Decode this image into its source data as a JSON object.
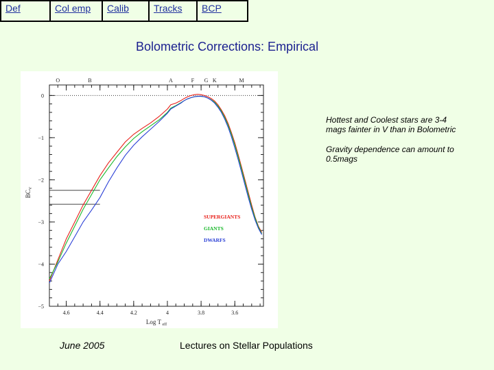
{
  "nav": {
    "items": [
      {
        "label": "Def",
        "width": 72
      },
      {
        "label": "Col emp",
        "width": 76
      },
      {
        "label": "Calib",
        "width": 68
      },
      {
        "label": "Tracks",
        "width": 70
      },
      {
        "label": "BCP",
        "width": 72
      }
    ]
  },
  "slide": {
    "title": "Bolometric Corrections: Empirical",
    "notes": [
      "Hottest and Coolest stars are 3-4 mags fainter in V than in Bolometric",
      "Gravity dependence can amount to 0.5mags"
    ],
    "footer_date": "June 2005",
    "footer_title": "Lectures on Stellar Populations"
  },
  "chart_data": {
    "type": "line",
    "xlabel": "Log T",
    "xlabel_sub": "eff",
    "ylabel": "BC",
    "ylabel_sub": "V",
    "xlim": [
      4.7,
      3.43
    ],
    "ylim": [
      -5.0,
      0.25
    ],
    "x_reversed": true,
    "grid": false,
    "zero_line": true,
    "x_ticks": [
      4.6,
      4.4,
      4.2,
      4.0,
      3.8,
      3.6
    ],
    "x_tick_labels": [
      "4.6",
      "4.4",
      "4.2",
      "4",
      "3.8",
      "3.6"
    ],
    "y_ticks": [
      0,
      -1,
      -2,
      -3,
      -4,
      -5
    ],
    "y_tick_labels": [
      "0",
      "−1",
      "−2",
      "−3",
      "−4",
      "−5"
    ],
    "spectral_types": [
      {
        "label": "O",
        "x": 4.65
      },
      {
        "label": "B",
        "x": 4.46
      },
      {
        "label": "A",
        "x": 3.98
      },
      {
        "label": "F",
        "x": 3.85
      },
      {
        "label": "G",
        "x": 3.77
      },
      {
        "label": "K",
        "x": 3.72
      },
      {
        "label": "M",
        "x": 3.56
      }
    ],
    "legend_position": "lower-right",
    "reference_lines": [
      {
        "y": -2.25,
        "x_from": 4.7,
        "x_to": 4.4
      },
      {
        "y": -2.58,
        "x_from": 4.7,
        "x_to": 4.4
      }
    ],
    "series": [
      {
        "name": "SUPERGIANTS",
        "color": "#e8201a",
        "x": [
          4.7,
          4.65,
          4.6,
          4.55,
          4.5,
          4.45,
          4.4,
          4.35,
          4.3,
          4.25,
          4.2,
          4.15,
          4.1,
          4.05,
          4.0,
          3.98,
          3.95,
          3.92,
          3.9,
          3.88,
          3.86,
          3.84,
          3.82,
          3.8,
          3.78,
          3.76,
          3.74,
          3.72,
          3.7,
          3.68,
          3.66,
          3.64,
          3.62,
          3.6,
          3.58,
          3.56,
          3.54,
          3.52,
          3.5,
          3.48,
          3.46,
          3.44
        ],
        "y": [
          -4.4,
          -3.9,
          -3.4,
          -3.0,
          -2.6,
          -2.25,
          -1.9,
          -1.6,
          -1.35,
          -1.1,
          -0.92,
          -0.78,
          -0.65,
          -0.5,
          -0.32,
          -0.22,
          -0.18,
          -0.12,
          -0.07,
          -0.03,
          0.0,
          0.02,
          0.03,
          0.02,
          0.0,
          -0.03,
          -0.07,
          -0.13,
          -0.22,
          -0.34,
          -0.48,
          -0.66,
          -0.88,
          -1.12,
          -1.4,
          -1.7,
          -2.0,
          -2.3,
          -2.6,
          -2.88,
          -3.1,
          -3.25
        ]
      },
      {
        "name": "GIANTS",
        "color": "#18b82a",
        "x": [
          4.7,
          4.65,
          4.6,
          4.55,
          4.5,
          4.45,
          4.4,
          4.35,
          4.3,
          4.25,
          4.2,
          4.15,
          4.1,
          4.05,
          4.0,
          3.98,
          3.95,
          3.92,
          3.9,
          3.88,
          3.86,
          3.84,
          3.82,
          3.8,
          3.78,
          3.76,
          3.74,
          3.72,
          3.7,
          3.68,
          3.66,
          3.64,
          3.62,
          3.6,
          3.58,
          3.56,
          3.54,
          3.52,
          3.5,
          3.48,
          3.46,
          3.44
        ],
        "y": [
          -4.35,
          -3.95,
          -3.5,
          -3.1,
          -2.7,
          -2.35,
          -2.0,
          -1.72,
          -1.45,
          -1.22,
          -1.02,
          -0.86,
          -0.72,
          -0.58,
          -0.4,
          -0.3,
          -0.24,
          -0.17,
          -0.12,
          -0.08,
          -0.05,
          -0.03,
          -0.02,
          -0.02,
          -0.03,
          -0.06,
          -0.1,
          -0.16,
          -0.25,
          -0.37,
          -0.52,
          -0.7,
          -0.92,
          -1.17,
          -1.45,
          -1.75,
          -2.05,
          -2.35,
          -2.65,
          -2.9,
          -3.12,
          -3.28
        ]
      },
      {
        "name": "DWARFS",
        "color": "#2a3fd6",
        "x": [
          4.7,
          4.65,
          4.6,
          4.55,
          4.5,
          4.45,
          4.4,
          4.35,
          4.3,
          4.25,
          4.2,
          4.15,
          4.1,
          4.05,
          4.0,
          3.98,
          3.95,
          3.92,
          3.9,
          3.88,
          3.86,
          3.84,
          3.82,
          3.8,
          3.78,
          3.76,
          3.74,
          3.72,
          3.7,
          3.68,
          3.66,
          3.64,
          3.62,
          3.6,
          3.58,
          3.56,
          3.54,
          3.52,
          3.5,
          3.48,
          3.46,
          3.44
        ],
        "y": [
          -4.45,
          -4.0,
          -3.7,
          -3.35,
          -3.0,
          -2.72,
          -2.42,
          -2.05,
          -1.72,
          -1.42,
          -1.18,
          -0.98,
          -0.8,
          -0.62,
          -0.42,
          -0.32,
          -0.25,
          -0.18,
          -0.12,
          -0.08,
          -0.05,
          -0.03,
          -0.02,
          -0.02,
          -0.03,
          -0.06,
          -0.11,
          -0.18,
          -0.28,
          -0.4,
          -0.56,
          -0.75,
          -0.98,
          -1.24,
          -1.52,
          -1.82,
          -2.12,
          -2.42,
          -2.7,
          -2.95,
          -3.15,
          -3.3
        ]
      }
    ]
  }
}
